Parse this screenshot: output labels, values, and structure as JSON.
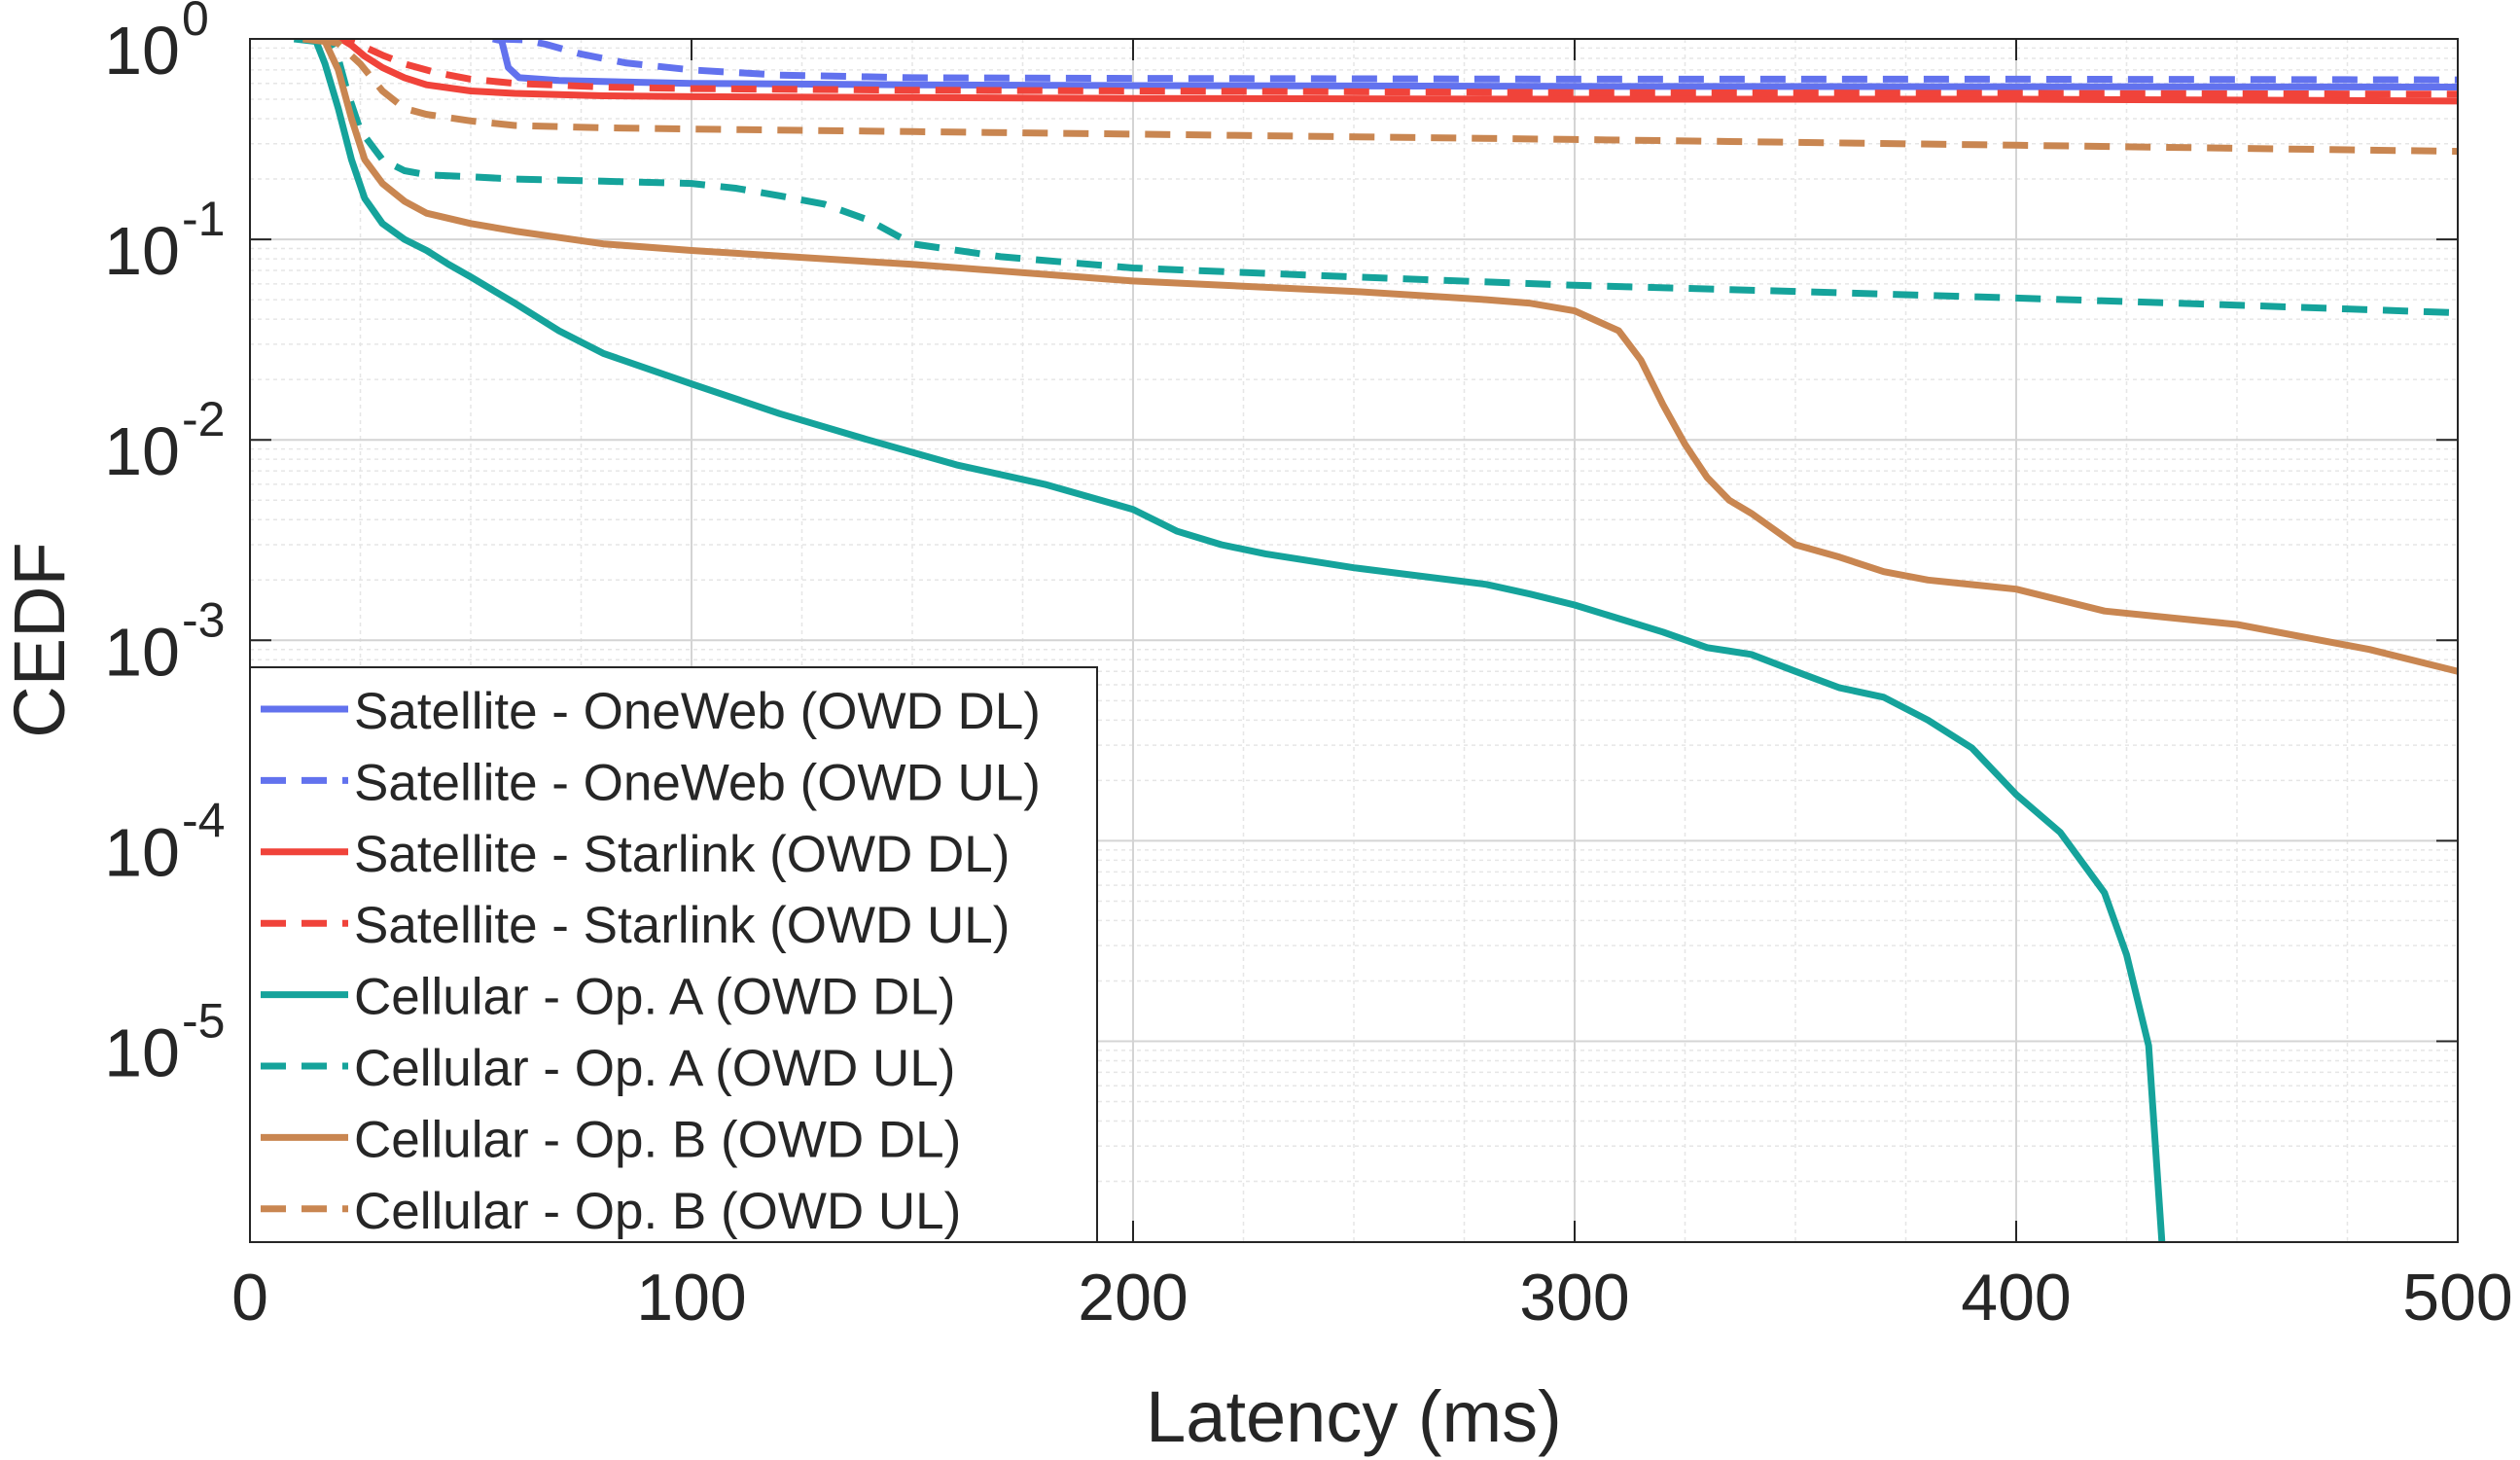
{
  "chart_data": {
    "type": "line",
    "title": "",
    "xlabel": "Latency (ms)",
    "ylabel": "CEDF",
    "x_scale": "linear",
    "y_scale": "log",
    "xlim": [
      0,
      500
    ],
    "ylim": [
      1e-06,
      1
    ],
    "x_ticks": [
      {
        "value": 0,
        "label": "0"
      },
      {
        "value": 100,
        "label": "100"
      },
      {
        "value": 200,
        "label": "200"
      },
      {
        "value": 300,
        "label": "300"
      },
      {
        "value": 400,
        "label": "400"
      },
      {
        "value": 500,
        "label": "500"
      }
    ],
    "y_ticks": [
      {
        "value": 1,
        "base": "10",
        "exp": "0"
      },
      {
        "value": 0.1,
        "base": "10",
        "exp": "-1"
      },
      {
        "value": 0.01,
        "base": "10",
        "exp": "-2"
      },
      {
        "value": 0.001,
        "base": "10",
        "exp": "-3"
      },
      {
        "value": 0.0001,
        "base": "10",
        "exp": "-4"
      },
      {
        "value": 1e-05,
        "base": "10",
        "exp": "-5"
      }
    ],
    "grid": true,
    "legend_position": "bottom-left",
    "series": [
      {
        "name": "Satellite - OneWeb (OWD DL)",
        "color": "#6272EE",
        "dash": "solid",
        "x": [
          55,
          57,
          58.5,
          61,
          70,
          100,
          150,
          200,
          300,
          400,
          500
        ],
        "y": [
          1,
          0.98,
          0.72,
          0.64,
          0.62,
          0.6,
          0.59,
          0.585,
          0.58,
          0.578,
          0.575
        ]
      },
      {
        "name": "Satellite - OneWeb (OWD UL)",
        "color": "#6272EE",
        "dash": "dashed",
        "x": [
          56,
          62,
          67,
          75,
          85,
          100,
          120,
          150,
          200,
          300,
          400,
          500
        ],
        "y": [
          1,
          0.99,
          0.94,
          0.84,
          0.76,
          0.7,
          0.66,
          0.64,
          0.635,
          0.63,
          0.63,
          0.625
        ]
      },
      {
        "name": "Satellite - Starlink (OWD DL)",
        "color": "#F0433A",
        "dash": "solid",
        "x": [
          18,
          21,
          23,
          26,
          30,
          35,
          40,
          50,
          60,
          80,
          100,
          150,
          200,
          300,
          400,
          500
        ],
        "y": [
          1,
          0.99,
          0.93,
          0.82,
          0.72,
          0.64,
          0.59,
          0.55,
          0.535,
          0.52,
          0.515,
          0.51,
          0.505,
          0.5,
          0.5,
          0.49
        ]
      },
      {
        "name": "Satellite - Starlink (OWD UL)",
        "color": "#F0433A",
        "dash": "dashed",
        "x": [
          18,
          22,
          26,
          30,
          35,
          42,
          50,
          60,
          80,
          100,
          150,
          200,
          300,
          400,
          500
        ],
        "y": [
          1,
          0.98,
          0.91,
          0.83,
          0.75,
          0.68,
          0.63,
          0.6,
          0.575,
          0.565,
          0.555,
          0.55,
          0.54,
          0.535,
          0.53
        ]
      },
      {
        "name": "Cellular - Op. A (OWD DL)",
        "color": "#15A39B",
        "dash": "solid",
        "x": [
          10,
          15,
          17,
          20,
          23,
          26,
          30,
          35,
          40,
          45,
          50,
          60,
          70,
          80,
          100,
          120,
          140,
          160,
          180,
          200,
          210,
          220,
          230,
          250,
          280,
          290,
          300,
          320,
          330,
          340,
          350,
          360,
          370,
          380,
          390,
          400,
          410,
          420,
          425,
          430,
          433
        ],
        "y": [
          1,
          0.97,
          0.75,
          0.45,
          0.25,
          0.16,
          0.12,
          0.1,
          0.088,
          0.075,
          0.065,
          0.048,
          0.035,
          0.027,
          0.019,
          0.0135,
          0.01,
          0.0075,
          0.006,
          0.0045,
          0.0035,
          0.003,
          0.0027,
          0.0023,
          0.0019,
          0.0017,
          0.0015,
          0.0011,
          0.00092,
          0.00085,
          0.0007,
          0.00058,
          0.00052,
          0.0004,
          0.00029,
          0.00017,
          0.00011,
          5.5e-05,
          2.7e-05,
          9.5e-06,
          1e-06
        ]
      },
      {
        "name": "Cellular - Op. A (OWD UL)",
        "color": "#15A39B",
        "dash": "dashed",
        "x": [
          14,
          18,
          20,
          22,
          25,
          30,
          35,
          40,
          50,
          60,
          80,
          100,
          110,
          120,
          130,
          140,
          150,
          170,
          200,
          250,
          300,
          350,
          400,
          450,
          500
        ],
        "y": [
          1,
          0.97,
          0.8,
          0.55,
          0.35,
          0.25,
          0.22,
          0.21,
          0.205,
          0.2,
          0.195,
          0.19,
          0.18,
          0.165,
          0.15,
          0.125,
          0.095,
          0.082,
          0.072,
          0.065,
          0.059,
          0.055,
          0.051,
          0.047,
          0.043
        ]
      },
      {
        "name": "Cellular - Op. B (OWD DL)",
        "color": "#C98651",
        "dash": "solid",
        "x": [
          12,
          17,
          20,
          23,
          26,
          30,
          35,
          40,
          50,
          60,
          80,
          100,
          150,
          200,
          250,
          280,
          290,
          300,
          310,
          315,
          320,
          325,
          330,
          335,
          340,
          350,
          360,
          370,
          380,
          400,
          420,
          450,
          480,
          500
        ],
        "y": [
          1,
          0.97,
          0.7,
          0.4,
          0.25,
          0.19,
          0.155,
          0.135,
          0.12,
          0.11,
          0.095,
          0.088,
          0.075,
          0.062,
          0.055,
          0.05,
          0.048,
          0.044,
          0.035,
          0.025,
          0.015,
          0.0095,
          0.0065,
          0.005,
          0.0043,
          0.003,
          0.0026,
          0.0022,
          0.002,
          0.0018,
          0.0014,
          0.0012,
          0.0009,
          0.0007
        ]
      },
      {
        "name": "Cellular - Op. B (OWD UL)",
        "color": "#C98651",
        "dash": "dashed",
        "x": [
          15,
          20,
          25,
          30,
          35,
          40,
          50,
          60,
          80,
          100,
          150,
          200,
          300,
          400,
          500
        ],
        "y": [
          1,
          0.95,
          0.75,
          0.55,
          0.45,
          0.42,
          0.39,
          0.37,
          0.36,
          0.355,
          0.345,
          0.335,
          0.315,
          0.295,
          0.275
        ]
      }
    ]
  }
}
